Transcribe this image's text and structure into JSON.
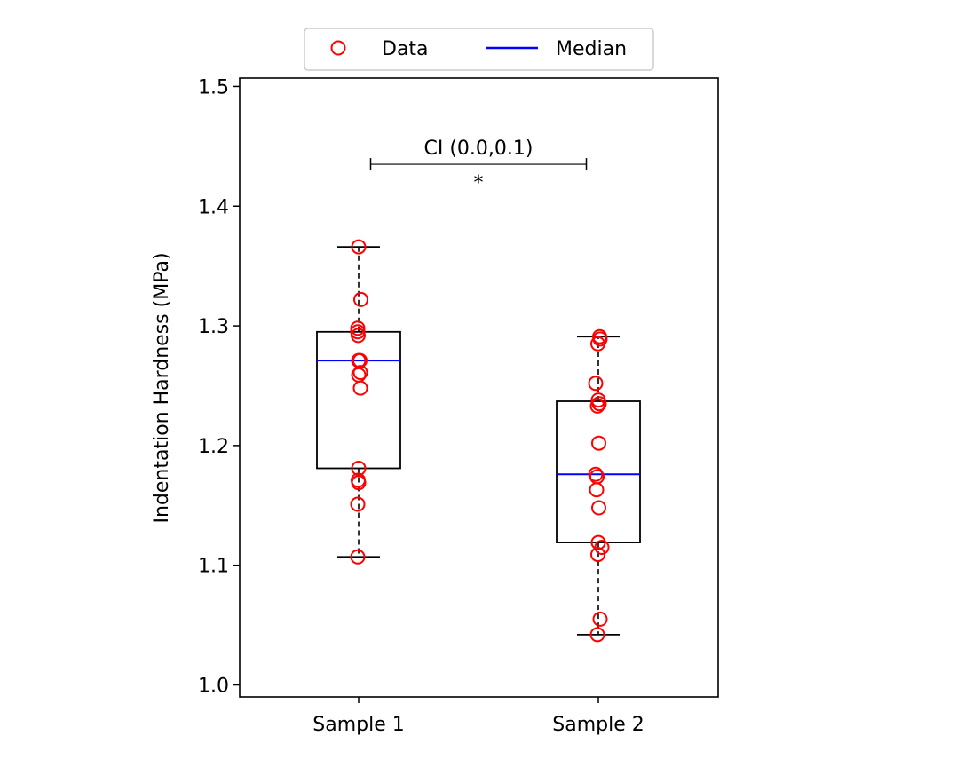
{
  "chart_data": {
    "type": "box",
    "categories": [
      "Sample 1",
      "Sample 2"
    ],
    "ylabel": "Indentation Hardness (MPa)",
    "xlabel": "",
    "ylim": [
      0.99,
      1.507
    ],
    "yticks": [
      "1.0",
      "1.1",
      "1.2",
      "1.3",
      "1.4",
      "1.5"
    ],
    "legend": {
      "placement": "top-center",
      "entries": [
        {
          "label": "Data",
          "marker": "open-circle",
          "color": "#ff0000"
        },
        {
          "label": "Median",
          "marker": "line",
          "color": "#0000ff"
        }
      ]
    },
    "boxes": [
      {
        "name": "Sample 1",
        "whisker_low": 1.107,
        "q1": 1.181,
        "median": 1.271,
        "q3": 1.295,
        "whisker_high": 1.366
      },
      {
        "name": "Sample 2",
        "whisker_low": 1.042,
        "q1": 1.119,
        "median": 1.176,
        "q3": 1.237,
        "whisker_high": 1.291
      }
    ],
    "points": [
      [
        {
          "dx": 0.0,
          "y": 1.366
        },
        {
          "dx": 0.05,
          "y": 1.322
        },
        {
          "dx": -0.02,
          "y": 1.298
        },
        {
          "dx": -0.01,
          "y": 1.292
        },
        {
          "dx": -0.02,
          "y": 1.295
        },
        {
          "dx": 0.0,
          "y": 1.271
        },
        {
          "dx": 0.03,
          "y": 1.271
        },
        {
          "dx": 0.0,
          "y": 1.259
        },
        {
          "dx": 0.04,
          "y": 1.261
        },
        {
          "dx": 0.04,
          "y": 1.248
        },
        {
          "dx": 0.0,
          "y": 1.181
        },
        {
          "dx": -0.01,
          "y": 1.171
        },
        {
          "dx": 0.0,
          "y": 1.169
        },
        {
          "dx": -0.02,
          "y": 1.151
        },
        {
          "dx": -0.02,
          "y": 1.107
        }
      ],
      [
        {
          "dx": 0.03,
          "y": 1.291
        },
        {
          "dx": 0.04,
          "y": 1.289
        },
        {
          "dx": -0.01,
          "y": 1.285
        },
        {
          "dx": -0.06,
          "y": 1.252
        },
        {
          "dx": 0.0,
          "y": 1.238
        },
        {
          "dx": 0.02,
          "y": 1.235
        },
        {
          "dx": -0.02,
          "y": 1.233
        },
        {
          "dx": 0.01,
          "y": 1.202
        },
        {
          "dx": -0.06,
          "y": 1.176
        },
        {
          "dx": -0.03,
          "y": 1.174
        },
        {
          "dx": -0.04,
          "y": 1.163
        },
        {
          "dx": 0.01,
          "y": 1.148
        },
        {
          "dx": 0.0,
          "y": 1.119
        },
        {
          "dx": 0.08,
          "y": 1.115
        },
        {
          "dx": -0.01,
          "y": 1.109
        },
        {
          "dx": 0.04,
          "y": 1.055
        },
        {
          "dx": -0.02,
          "y": 1.042
        }
      ]
    ],
    "annotation": {
      "label": "CI (0.0,0.1)",
      "significance": "*",
      "y": 1.435,
      "x_from": 0.05,
      "x_to": 0.95
    }
  }
}
